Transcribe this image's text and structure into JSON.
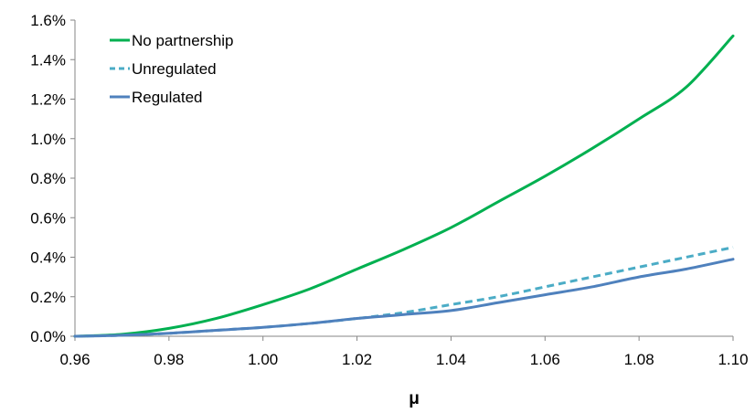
{
  "chart_data": {
    "type": "line",
    "xlabel": "μ",
    "ylabel": "",
    "title": "",
    "xlim": [
      0.96,
      1.1
    ],
    "ylim": [
      0,
      0.016
    ],
    "grid": false,
    "legend_position": "top-left",
    "x_ticks": [
      "0.96",
      "0.98",
      "1.00",
      "1.02",
      "1.04",
      "1.06",
      "1.08",
      "1.10"
    ],
    "y_ticks": [
      "0.0%",
      "0.2%",
      "0.4%",
      "0.6%",
      "0.8%",
      "1.0%",
      "1.2%",
      "1.4%",
      "1.6%"
    ],
    "x": [
      0.96,
      0.97,
      0.98,
      0.99,
      1.0,
      1.01,
      1.02,
      1.03,
      1.04,
      1.05,
      1.06,
      1.07,
      1.08,
      1.09,
      1.1
    ],
    "series": [
      {
        "name": "No partnership",
        "color": "#00b050",
        "dash": "solid",
        "values": [
          0.0,
          0.0001,
          0.0004,
          0.0009,
          0.0016,
          0.0024,
          0.0034,
          0.0044,
          0.0055,
          0.0068,
          0.0081,
          0.0095,
          0.011,
          0.0126,
          0.0152
        ]
      },
      {
        "name": "Unregulated",
        "color": "#4bacc6",
        "dash": "dashed",
        "values": [
          0.0,
          5e-05,
          0.00015,
          0.0003,
          0.00045,
          0.00065,
          0.0009,
          0.0012,
          0.0016,
          0.002,
          0.0025,
          0.003,
          0.0035,
          0.004,
          0.0045
        ]
      },
      {
        "name": "Regulated",
        "color": "#4f81bd",
        "dash": "solid",
        "values": [
          0.0,
          5e-05,
          0.00015,
          0.0003,
          0.00045,
          0.00065,
          0.0009,
          0.0011,
          0.0013,
          0.0017,
          0.0021,
          0.0025,
          0.003,
          0.0034,
          0.0039
        ]
      }
    ]
  }
}
